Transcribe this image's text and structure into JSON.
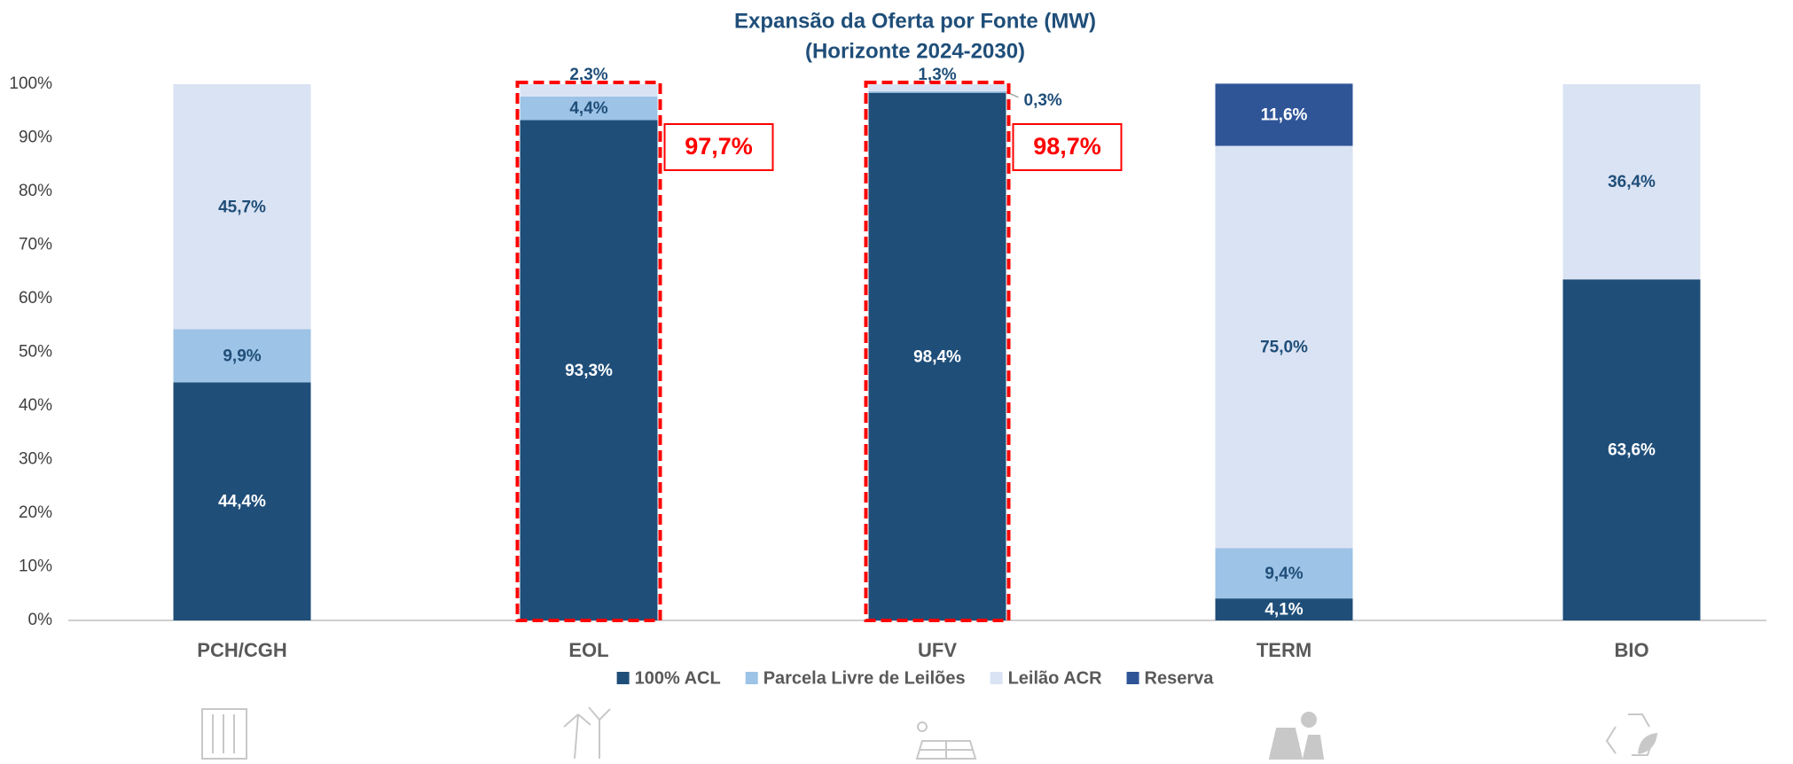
{
  "chart_data": {
    "type": "stacked_bar",
    "title": "Expansão da Oferta por Fonte (MW)",
    "subtitle": "(Horizonte 2024-2030)",
    "categories": [
      "PCH/CGH",
      "EOL",
      "UFV",
      "TERM",
      "BIO"
    ],
    "series": [
      {
        "name": "100% ACL",
        "color": "#1f4e79",
        "values": [
          44.4,
          93.3,
          98.4,
          4.1,
          63.6
        ],
        "value_labels": [
          "44,4%",
          "93,3%",
          "98,4%",
          "4,1%",
          "63,6%"
        ]
      },
      {
        "name": "Parcela Livre de Leilões",
        "color": "#9dc3e6",
        "values": [
          9.9,
          4.4,
          0.3,
          9.4,
          null
        ],
        "value_labels": [
          "9,9%",
          "4,4%",
          "0,3%",
          "9,4%",
          null
        ]
      },
      {
        "name": "Leilão ACR",
        "color": "#dae3f3",
        "values": [
          45.7,
          2.3,
          1.3,
          75.0,
          36.4
        ],
        "value_labels": [
          "45,7%",
          "2,3%",
          "1,3%",
          "75,0%",
          "36,4%"
        ]
      },
      {
        "name": "Reserva",
        "color": "#2f5597",
        "values": [
          null,
          null,
          null,
          11.6,
          null
        ],
        "value_labels": [
          null,
          null,
          null,
          "11,6%",
          null
        ]
      }
    ],
    "ylim": [
      0,
      100
    ],
    "yticks": [
      {
        "value": 0,
        "label": "0%"
      },
      {
        "value": 10,
        "label": "10%"
      },
      {
        "value": 20,
        "label": "20%"
      },
      {
        "value": 30,
        "label": "30%"
      },
      {
        "value": 40,
        "label": "40%"
      },
      {
        "value": 50,
        "label": "50%"
      },
      {
        "value": 60,
        "label": "60%"
      },
      {
        "value": 70,
        "label": "70%"
      },
      {
        "value": 80,
        "label": "80%"
      },
      {
        "value": 90,
        "label": "90%"
      },
      {
        "value": 100,
        "label": "100%"
      }
    ],
    "annotations": [
      {
        "category": "EOL",
        "label": "97,7%"
      },
      {
        "category": "UFV",
        "label": "98,7%"
      }
    ],
    "legend": "bottom"
  }
}
